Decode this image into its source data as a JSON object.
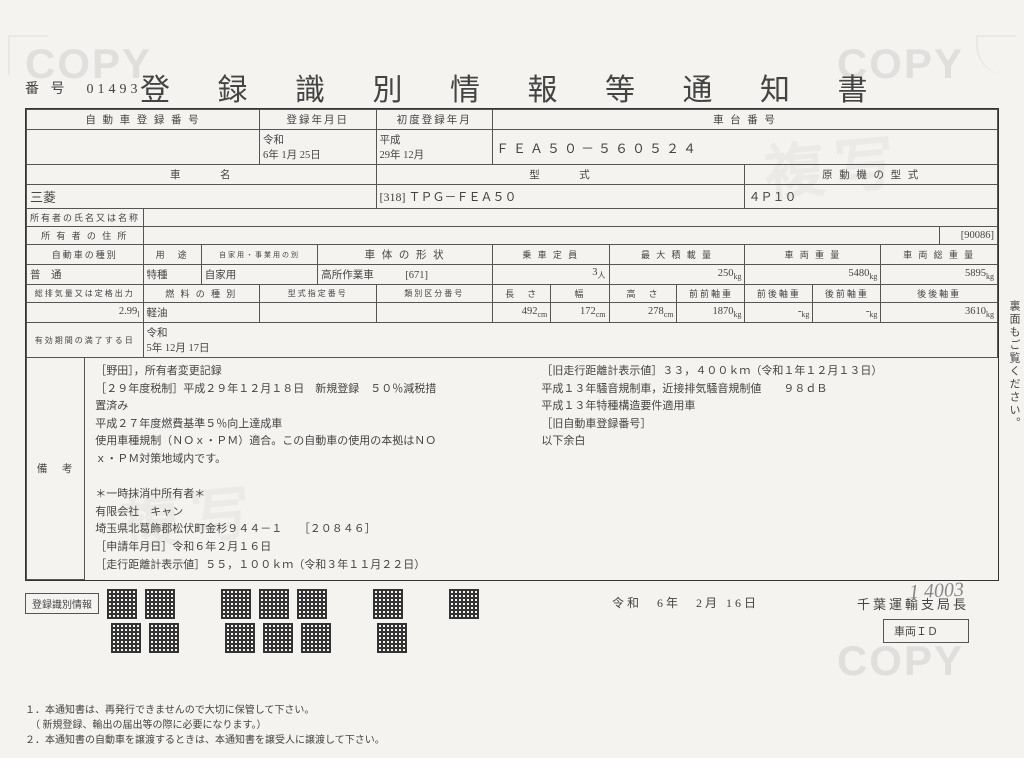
{
  "watermark": "COPY",
  "fukusha": "複写",
  "doc_number_label": "番 号",
  "doc_number": "01493",
  "title": "登 録 識 別 情 報 等 通 知 書",
  "row1": {
    "h1": "自 動 車 登 録 番 号",
    "v1": "",
    "h2": "登録年月日",
    "v2_era": "令和",
    "v2": "6年 1月 25日",
    "h3": "初度登録年月",
    "v3_era": "平成",
    "v3": "29年 12月",
    "h4": "車 台 番 号",
    "v4": "ＦＥＡ５０－５６０５２４"
  },
  "row2": {
    "h1": "車　　　名",
    "v1": "三菱",
    "h2": "型　　　式",
    "v2_code": "[318]",
    "v2": "ＴＰＧ－ＦＥＡ５０",
    "h3": "原 動 機 の 型 式",
    "v3": "４Ｐ１０"
  },
  "row3": {
    "h1": "所有者の氏名又は名称",
    "v1": ""
  },
  "row4": {
    "h1": "所 有 者 の 住 所",
    "v1": "",
    "code": "[90086]"
  },
  "row5": {
    "h1": "自動車の種別",
    "v1": "普　通",
    "h2": "用　途",
    "sub2": "自家用・事業用の別",
    "v2a": "特種",
    "v2b": "自家用",
    "h3": "車 体 の 形 状",
    "v3": "高所作業車",
    "v3c": "[671]",
    "h4": "乗 車 定 員",
    "v4": "3",
    "u4": "人",
    "h5": "最 大 積 載 量",
    "v5": "250",
    "u5": "kg",
    "h6": "車 両 重 量",
    "v6": "5480",
    "u6": "kg",
    "h7": "車 両 総 重 量",
    "v7": "5895",
    "u7": "kg"
  },
  "row6": {
    "h1": "総排気量又は定格出力",
    "v1": "2.99",
    "u1": "l",
    "h2": "燃 料 の 種 別",
    "v2": "軽油",
    "h3": "型式指定番号",
    "v3": "",
    "h4": "類別区分番号",
    "v4": "",
    "h5": "長　さ",
    "v5": "492",
    "u5": "cm",
    "h6": "幅　",
    "v6": "172",
    "u6": "cm",
    "h7": "高　さ",
    "v7": "278",
    "u7": "cm",
    "h8": "前前軸重",
    "v8": "1870",
    "u8": "kg",
    "h9": "前後軸重",
    "v9": "-",
    "u9": "kg",
    "h10": "後前軸重",
    "v10": "-",
    "u10": "kg",
    "h11": "後後軸重",
    "v11": "3610",
    "u11": "kg"
  },
  "row7": {
    "h1": "有効期間の満了する日",
    "era": "令和",
    "v1": "5年 12月 17日"
  },
  "remarks_h": "備　考",
  "remarks_left": [
    "［野田］，所有者変更記録",
    "［２９年度税制］平成２９年１２月１８日　新規登録　５０％減税措",
    "置済み",
    "平成２７年度燃費基準５％向上達成車",
    "使用車種規制（ＮＯｘ・ＰＭ）適合。この自動車の使用の本拠はＮＯ",
    "ｘ・ＰＭ対策地域内です。",
    "　",
    "＊一時抹消中所有者＊",
    "有限会社　キャン",
    "埼玉県北葛飾郡松伏町金杉９４４－１　　［２０８４６］",
    "［申請年月日］令和６年２月１６日",
    "［走行距離計表示値］５５，１００ｋｍ（令和３年１１月２２日）"
  ],
  "remarks_right": [
    "［旧走行距離計表示値］３３，４００ｋｍ（令和１年１２月１３日）",
    "平成１３年騒音規制車，近接排気騒音規制値　　９８ｄＢ",
    "平成１３年特種構造要件適用車",
    "［旧自動車登録番号］",
    "以下余白"
  ],
  "handwrite": "1 4003",
  "side_note": "裏面もご覧ください。",
  "qr_label": "登録識別情報",
  "issue_date": "令和　6年　2月 16日",
  "issuer": "千葉運輸支局長",
  "vid_label": "車両ＩＤ",
  "footnote1": "１．本通知書は、再発行できませんので大切に保管して下さい。",
  "footnote1b": "　（ 新規登録、輸出の届出等の際に必要になります。）",
  "footnote2": "２．本通知書の自動車を譲渡するときは、本通知書を譲受人に譲渡して下さい。"
}
